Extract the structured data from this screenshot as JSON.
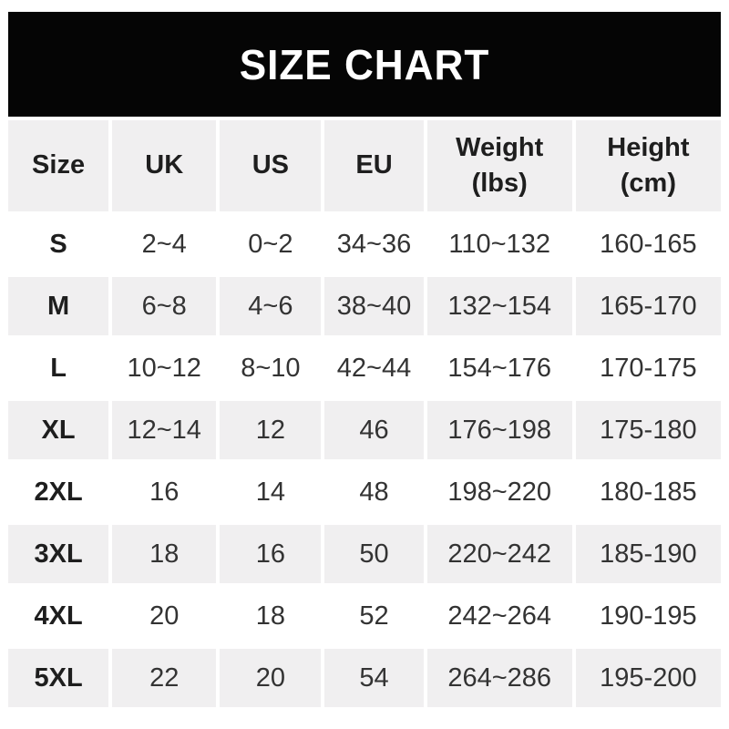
{
  "title": "SIZE CHART",
  "colors": {
    "banner_bg": "#050505",
    "banner_text": "#ffffff",
    "row_alt_bg": "#f0eff0",
    "row_bg": "#ffffff",
    "text": "#333333",
    "text_bold": "#1e1e1e"
  },
  "header": {
    "labels": [
      "Size",
      "UK",
      "US",
      "EU",
      "Weight\n(lbs)",
      "Height\n(cm)"
    ]
  },
  "chart_data": {
    "type": "table",
    "title": "SIZE CHART",
    "columns": [
      "Size",
      "UK",
      "US",
      "EU",
      "Weight (lbs)",
      "Height (cm)"
    ],
    "rows": [
      [
        "S",
        "2~4",
        "0~2",
        "34~36",
        "110~132",
        "160-165"
      ],
      [
        "M",
        "6~8",
        "4~6",
        "38~40",
        "132~154",
        "165-170"
      ],
      [
        "L",
        "10~12",
        "8~10",
        "42~44",
        "154~176",
        "170-175"
      ],
      [
        "XL",
        "12~14",
        "12",
        "46",
        "176~198",
        "175-180"
      ],
      [
        "2XL",
        "16",
        "14",
        "48",
        "198~220",
        "180-185"
      ],
      [
        "3XL",
        "18",
        "16",
        "50",
        "220~242",
        "185-190"
      ],
      [
        "4XL",
        "20",
        "18",
        "52",
        "242~264",
        "190-195"
      ],
      [
        "5XL",
        "22",
        "20",
        "54",
        "264~286",
        "195-200"
      ]
    ]
  }
}
